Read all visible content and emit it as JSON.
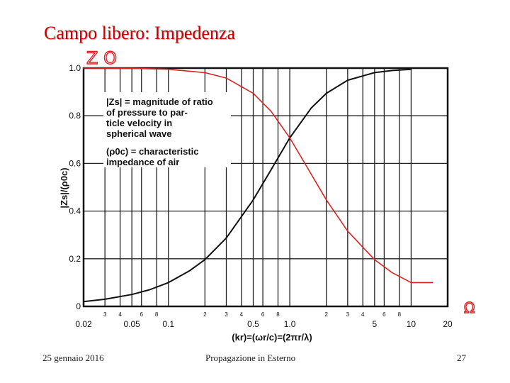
{
  "slide": {
    "title": "Campo libero: Impedenza",
    "footer_date": "25 gennaio 2016",
    "footer_center": "Propagazione in Esterno",
    "page_number": "27",
    "hand_marks_top": "Z O",
    "hand_mark_right": "Ω"
  },
  "chart_data": {
    "type": "line",
    "xscale": "log",
    "xlim": [
      0.02,
      20
    ],
    "ylim": [
      0,
      1.0
    ],
    "xlabel": "(kr)=(ωr/c)=(2πr/λ)",
    "ylabel": "|Zs|/(ρ0c)",
    "grid": true,
    "x_major_ticks": [
      {
        "v": 0.02,
        "label": "0.02"
      },
      {
        "v": 0.05,
        "label": "0.05"
      },
      {
        "v": 0.1,
        "label": "0.1"
      },
      {
        "v": 0.5,
        "label": "0.5"
      },
      {
        "v": 1.0,
        "label": "1.0"
      },
      {
        "v": 5,
        "label": "5"
      },
      {
        "v": 10,
        "label": "10"
      },
      {
        "v": 20,
        "label": "20"
      }
    ],
    "x_minor_ticks": [
      {
        "v": 0.03,
        "label": "3"
      },
      {
        "v": 0.04,
        "label": "4"
      },
      {
        "v": 0.06,
        "label": "6"
      },
      {
        "v": 0.08,
        "label": "8"
      },
      {
        "v": 0.2,
        "label": "2"
      },
      {
        "v": 0.3,
        "label": "3"
      },
      {
        "v": 0.4,
        "label": "4"
      },
      {
        "v": 0.6,
        "label": "6"
      },
      {
        "v": 0.8,
        "label": "8"
      },
      {
        "v": 2,
        "label": "2"
      },
      {
        "v": 3,
        "label": "3"
      },
      {
        "v": 4,
        "label": "4"
      },
      {
        "v": 6,
        "label": "6"
      },
      {
        "v": 8,
        "label": "8"
      }
    ],
    "y_ticks": [
      {
        "v": 0,
        "label": "0"
      },
      {
        "v": 0.2,
        "label": "0.2"
      },
      {
        "v": 0.4,
        "label": "0.4"
      },
      {
        "v": 0.6,
        "label": "0.6"
      },
      {
        "v": 0.8,
        "label": "0.8"
      },
      {
        "v": 1.0,
        "label": "1.0"
      }
    ],
    "annotation_lines": [
      "|Zs| = magnitude of ratio",
      "of pressure to par-",
      "ticle velocity in",
      "spherical wave",
      "(ρ0c) = characteristic",
      "impedance of air"
    ],
    "series": [
      {
        "color": "#111111",
        "x": [
          0.02,
          0.03,
          0.05,
          0.07,
          0.1,
          0.15,
          0.2,
          0.3,
          0.5,
          0.7,
          1.0,
          1.5,
          2,
          3,
          5,
          7,
          10
        ],
        "y": [
          0.02,
          0.03,
          0.05,
          0.07,
          0.1,
          0.15,
          0.196,
          0.287,
          0.447,
          0.573,
          0.707,
          0.832,
          0.894,
          0.949,
          0.981,
          0.99,
          0.995
        ]
      },
      {
        "color": "#dd2222",
        "x": [
          0.02,
          0.05,
          0.1,
          0.2,
          0.3,
          0.5,
          0.7,
          1.0,
          1.5,
          2,
          3,
          5,
          7,
          10,
          15
        ],
        "y": [
          1.0,
          0.999,
          0.995,
          0.981,
          0.958,
          0.894,
          0.819,
          0.707,
          0.555,
          0.447,
          0.316,
          0.196,
          0.141,
          0.1,
          0.1
        ]
      }
    ]
  }
}
